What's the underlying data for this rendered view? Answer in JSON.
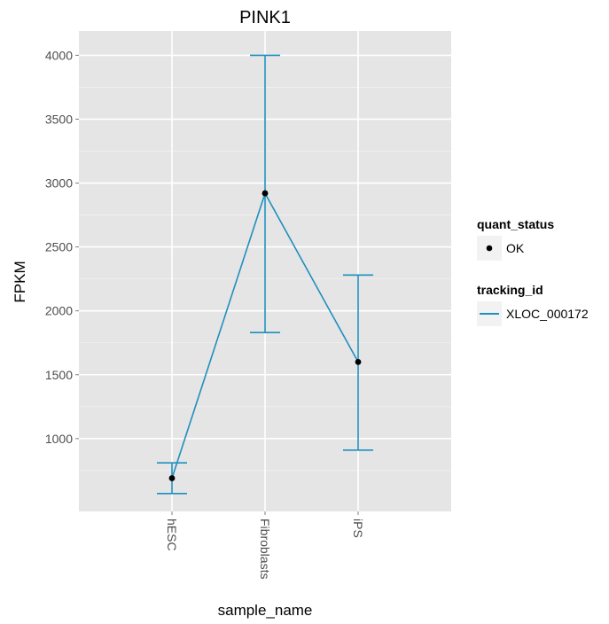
{
  "chart_data": {
    "type": "line",
    "title": "PINK1",
    "xlabel": "sample_name",
    "ylabel": "FPKM",
    "categories": [
      "hESC",
      "Fibroblasts",
      "iPS"
    ],
    "series": [
      {
        "name": "XLOC_000172",
        "values": [
          690,
          2920,
          1600
        ],
        "error_low": [
          570,
          1830,
          910
        ],
        "error_high": [
          810,
          4000,
          2280
        ],
        "point_status": [
          "OK",
          "OK",
          "OK"
        ]
      }
    ],
    "yticks": [
      1000,
      1500,
      2000,
      2500,
      3000,
      3500,
      4000
    ],
    "ytick_labels": [
      "1000",
      "1500",
      "2000",
      "2500",
      "3000",
      "3500",
      "4000"
    ],
    "ylim": [
      430,
      4190
    ],
    "grid": true,
    "x_tick_rotation": 90,
    "legend": {
      "placement": "right",
      "groups": [
        {
          "title": "quant_status",
          "entries": [
            "OK"
          ],
          "key": "point"
        },
        {
          "title": "tracking_id",
          "entries": [
            "XLOC_000172"
          ],
          "key": "line"
        }
      ]
    },
    "colors": {
      "series": "#1f8fbf",
      "point": "#000000",
      "panel": "#e5e5e5",
      "grid": "#ffffff"
    }
  }
}
